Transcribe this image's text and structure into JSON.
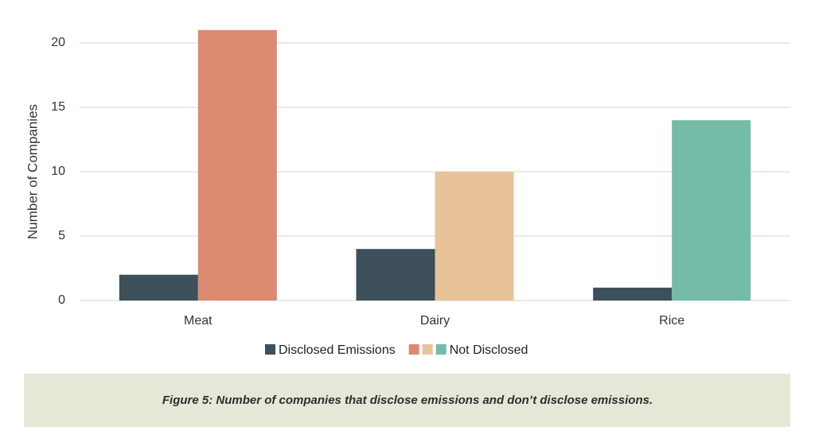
{
  "chart_data": {
    "type": "bar",
    "categories": [
      "Meat",
      "Dairy",
      "Rice"
    ],
    "series": [
      {
        "name": "Disclosed Emissions",
        "color": "#3c4f5a",
        "values": [
          2,
          4,
          1
        ]
      },
      {
        "name": "Not Disclosed",
        "colors": [
          "#dc8972",
          "#e8c39a",
          "#74bba8"
        ],
        "values": [
          21,
          10,
          14
        ]
      }
    ],
    "y_label": "Number of Companies",
    "ylim": [
      0,
      22
    ],
    "yticks": [
      0,
      5,
      10,
      15,
      20
    ],
    "grid": true,
    "caption": "Figure 5: Number of companies that disclose emissions and don’t disclose emissions."
  }
}
